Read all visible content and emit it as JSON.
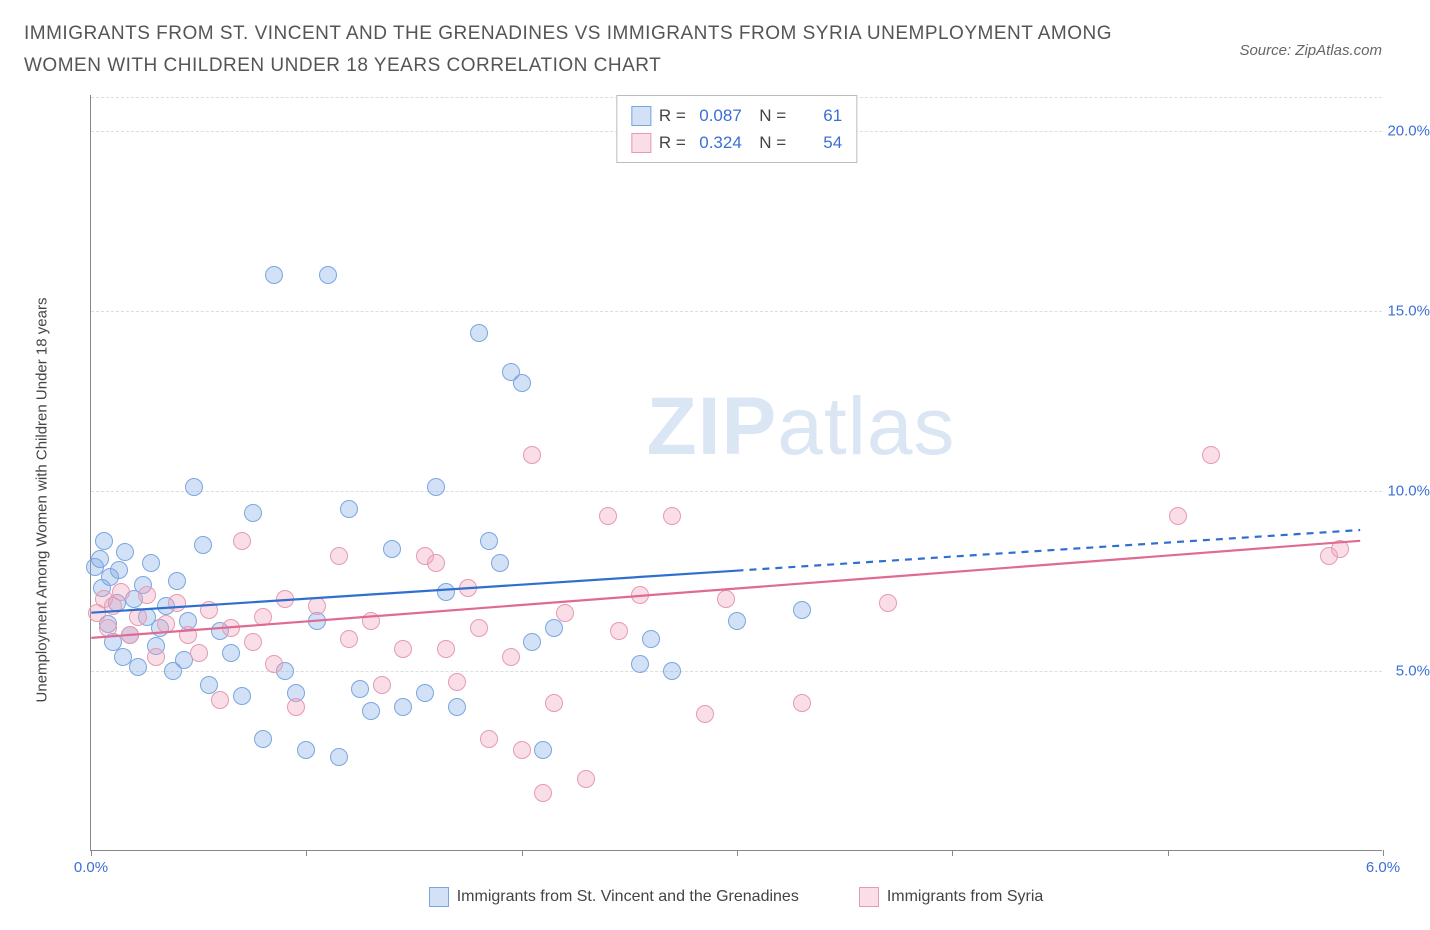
{
  "title": "IMMIGRANTS FROM ST. VINCENT AND THE GRENADINES VS IMMIGRANTS FROM SYRIA UNEMPLOYMENT AMONG WOMEN WITH CHILDREN UNDER 18 YEARS CORRELATION CHART",
  "source_label": "Source: ZipAtlas.com",
  "watermark_a": "ZIP",
  "watermark_b": "atlas",
  "chart": {
    "type": "scatter",
    "background_color": "#ffffff",
    "grid_color": "#dddddd",
    "axis_color": "#888888",
    "tick_color": "#3b6fd6",
    "yaxis_label": "Unemployment Among Women with Children Under 18 years",
    "xlim": [
      0,
      6
    ],
    "ylim": [
      0,
      21
    ],
    "xticks": [
      {
        "pos": 0.0,
        "label": "0.0%"
      },
      {
        "pos": 1.0,
        "label": ""
      },
      {
        "pos": 2.0,
        "label": ""
      },
      {
        "pos": 3.0,
        "label": ""
      },
      {
        "pos": 4.0,
        "label": ""
      },
      {
        "pos": 5.0,
        "label": ""
      },
      {
        "pos": 6.0,
        "label": "6.0%"
      }
    ],
    "yticks": [
      {
        "pos": 5.0,
        "label": "5.0%"
      },
      {
        "pos": 10.0,
        "label": "10.0%"
      },
      {
        "pos": 15.0,
        "label": "15.0%"
      },
      {
        "pos": 20.0,
        "label": "20.0%"
      }
    ],
    "marker_radius": 9,
    "marker_border_width": 1,
    "series": [
      {
        "name": "Immigrants from St. Vincent and the Grenadines",
        "fill_color": "rgba(130,170,230,0.35)",
        "border_color": "#7aa6e0",
        "line_color": "#2f6fd0",
        "R": "0.087",
        "N": "61",
        "trend": {
          "x1": 0.0,
          "y1": 6.6,
          "x2": 5.9,
          "y2": 8.9,
          "solid_until_x": 3.0
        },
        "points": [
          [
            0.02,
            7.9
          ],
          [
            0.04,
            8.1
          ],
          [
            0.05,
            7.3
          ],
          [
            0.06,
            8.6
          ],
          [
            0.08,
            6.3
          ],
          [
            0.09,
            7.6
          ],
          [
            0.1,
            5.8
          ],
          [
            0.12,
            6.9
          ],
          [
            0.13,
            7.8
          ],
          [
            0.15,
            5.4
          ],
          [
            0.16,
            8.3
          ],
          [
            0.18,
            6.0
          ],
          [
            0.2,
            7.0
          ],
          [
            0.22,
            5.1
          ],
          [
            0.24,
            7.4
          ],
          [
            0.26,
            6.5
          ],
          [
            0.28,
            8.0
          ],
          [
            0.3,
            5.7
          ],
          [
            0.32,
            6.2
          ],
          [
            0.35,
            6.8
          ],
          [
            0.38,
            5.0
          ],
          [
            0.4,
            7.5
          ],
          [
            0.43,
            5.3
          ],
          [
            0.45,
            6.4
          ],
          [
            0.48,
            10.1
          ],
          [
            0.52,
            8.5
          ],
          [
            0.55,
            4.6
          ],
          [
            0.6,
            6.1
          ],
          [
            0.65,
            5.5
          ],
          [
            0.7,
            4.3
          ],
          [
            0.75,
            9.4
          ],
          [
            0.8,
            3.1
          ],
          [
            0.85,
            16.0
          ],
          [
            0.9,
            5.0
          ],
          [
            0.95,
            4.4
          ],
          [
            1.0,
            2.8
          ],
          [
            1.05,
            6.4
          ],
          [
            1.1,
            16.0
          ],
          [
            1.15,
            2.6
          ],
          [
            1.2,
            9.5
          ],
          [
            1.25,
            4.5
          ],
          [
            1.3,
            3.9
          ],
          [
            1.4,
            8.4
          ],
          [
            1.45,
            4.0
          ],
          [
            1.55,
            4.4
          ],
          [
            1.6,
            10.1
          ],
          [
            1.65,
            7.2
          ],
          [
            1.7,
            4.0
          ],
          [
            1.8,
            14.4
          ],
          [
            1.85,
            8.6
          ],
          [
            1.9,
            8.0
          ],
          [
            1.95,
            13.3
          ],
          [
            2.0,
            13.0
          ],
          [
            2.05,
            5.8
          ],
          [
            2.1,
            2.8
          ],
          [
            2.15,
            6.2
          ],
          [
            2.55,
            5.2
          ],
          [
            2.6,
            5.9
          ],
          [
            2.7,
            5.0
          ],
          [
            3.0,
            6.4
          ],
          [
            3.3,
            6.7
          ]
        ]
      },
      {
        "name": "Immigrants from Syria",
        "fill_color": "rgba(240,160,185,0.35)",
        "border_color": "#e69ab2",
        "line_color": "#e06b92",
        "R": "0.324",
        "N": "54",
        "trend": {
          "x1": 0.0,
          "y1": 5.9,
          "x2": 5.9,
          "y2": 8.6,
          "solid_until_x": 5.9
        },
        "points": [
          [
            0.03,
            6.6
          ],
          [
            0.06,
            7.0
          ],
          [
            0.08,
            6.2
          ],
          [
            0.1,
            6.8
          ],
          [
            0.14,
            7.2
          ],
          [
            0.18,
            6.0
          ],
          [
            0.22,
            6.5
          ],
          [
            0.26,
            7.1
          ],
          [
            0.3,
            5.4
          ],
          [
            0.35,
            6.3
          ],
          [
            0.4,
            6.9
          ],
          [
            0.45,
            6.0
          ],
          [
            0.5,
            5.5
          ],
          [
            0.55,
            6.7
          ],
          [
            0.6,
            4.2
          ],
          [
            0.65,
            6.2
          ],
          [
            0.7,
            8.6
          ],
          [
            0.75,
            5.8
          ],
          [
            0.8,
            6.5
          ],
          [
            0.85,
            5.2
          ],
          [
            0.9,
            7.0
          ],
          [
            0.95,
            4.0
          ],
          [
            1.05,
            6.8
          ],
          [
            1.15,
            8.2
          ],
          [
            1.2,
            5.9
          ],
          [
            1.3,
            6.4
          ],
          [
            1.35,
            4.6
          ],
          [
            1.45,
            5.6
          ],
          [
            1.55,
            8.2
          ],
          [
            1.6,
            8.0
          ],
          [
            1.65,
            5.6
          ],
          [
            1.7,
            4.7
          ],
          [
            1.75,
            7.3
          ],
          [
            1.8,
            6.2
          ],
          [
            1.85,
            3.1
          ],
          [
            1.95,
            5.4
          ],
          [
            2.0,
            2.8
          ],
          [
            2.05,
            11.0
          ],
          [
            2.1,
            1.6
          ],
          [
            2.15,
            4.1
          ],
          [
            2.2,
            6.6
          ],
          [
            2.3,
            2.0
          ],
          [
            2.4,
            9.3
          ],
          [
            2.45,
            6.1
          ],
          [
            2.55,
            7.1
          ],
          [
            2.7,
            9.3
          ],
          [
            2.85,
            3.8
          ],
          [
            2.95,
            7.0
          ],
          [
            3.3,
            4.1
          ],
          [
            3.7,
            6.9
          ],
          [
            5.05,
            9.3
          ],
          [
            5.2,
            11.0
          ],
          [
            5.75,
            8.2
          ],
          [
            5.8,
            8.4
          ]
        ]
      }
    ],
    "legend_bottom": [
      {
        "label": "Immigrants from St. Vincent and the Grenadines",
        "series": 0
      },
      {
        "label": "Immigrants from Syria",
        "series": 1
      }
    ]
  }
}
